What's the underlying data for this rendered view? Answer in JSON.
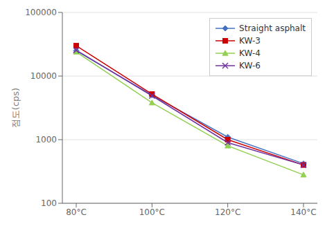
{
  "chart_data": {
    "type": "line",
    "categories": [
      "80°C",
      "100°C",
      "120°C",
      "140°C"
    ],
    "series": [
      {
        "name": "Straight asphalt",
        "color": "#4472C4",
        "marker": "diamond",
        "values": [
          25000,
          5000,
          1100,
          420
        ]
      },
      {
        "name": "KW-3",
        "color": "#CC0000",
        "marker": "square",
        "values": [
          30000,
          5200,
          1000,
          400
        ]
      },
      {
        "name": "KW-4",
        "color": "#92D050",
        "marker": "triangle",
        "values": [
          24000,
          3800,
          800,
          280
        ]
      },
      {
        "name": "KW-6",
        "color": "#7030A0",
        "marker": "x",
        "values": [
          25500,
          4900,
          900,
          400
        ]
      }
    ],
    "y_label": "점도(cps)",
    "ylim": [
      100,
      100000
    ],
    "yticks": [
      100,
      1000,
      10000,
      100000
    ],
    "log": "y",
    "grid": true,
    "legend": "upper right"
  }
}
